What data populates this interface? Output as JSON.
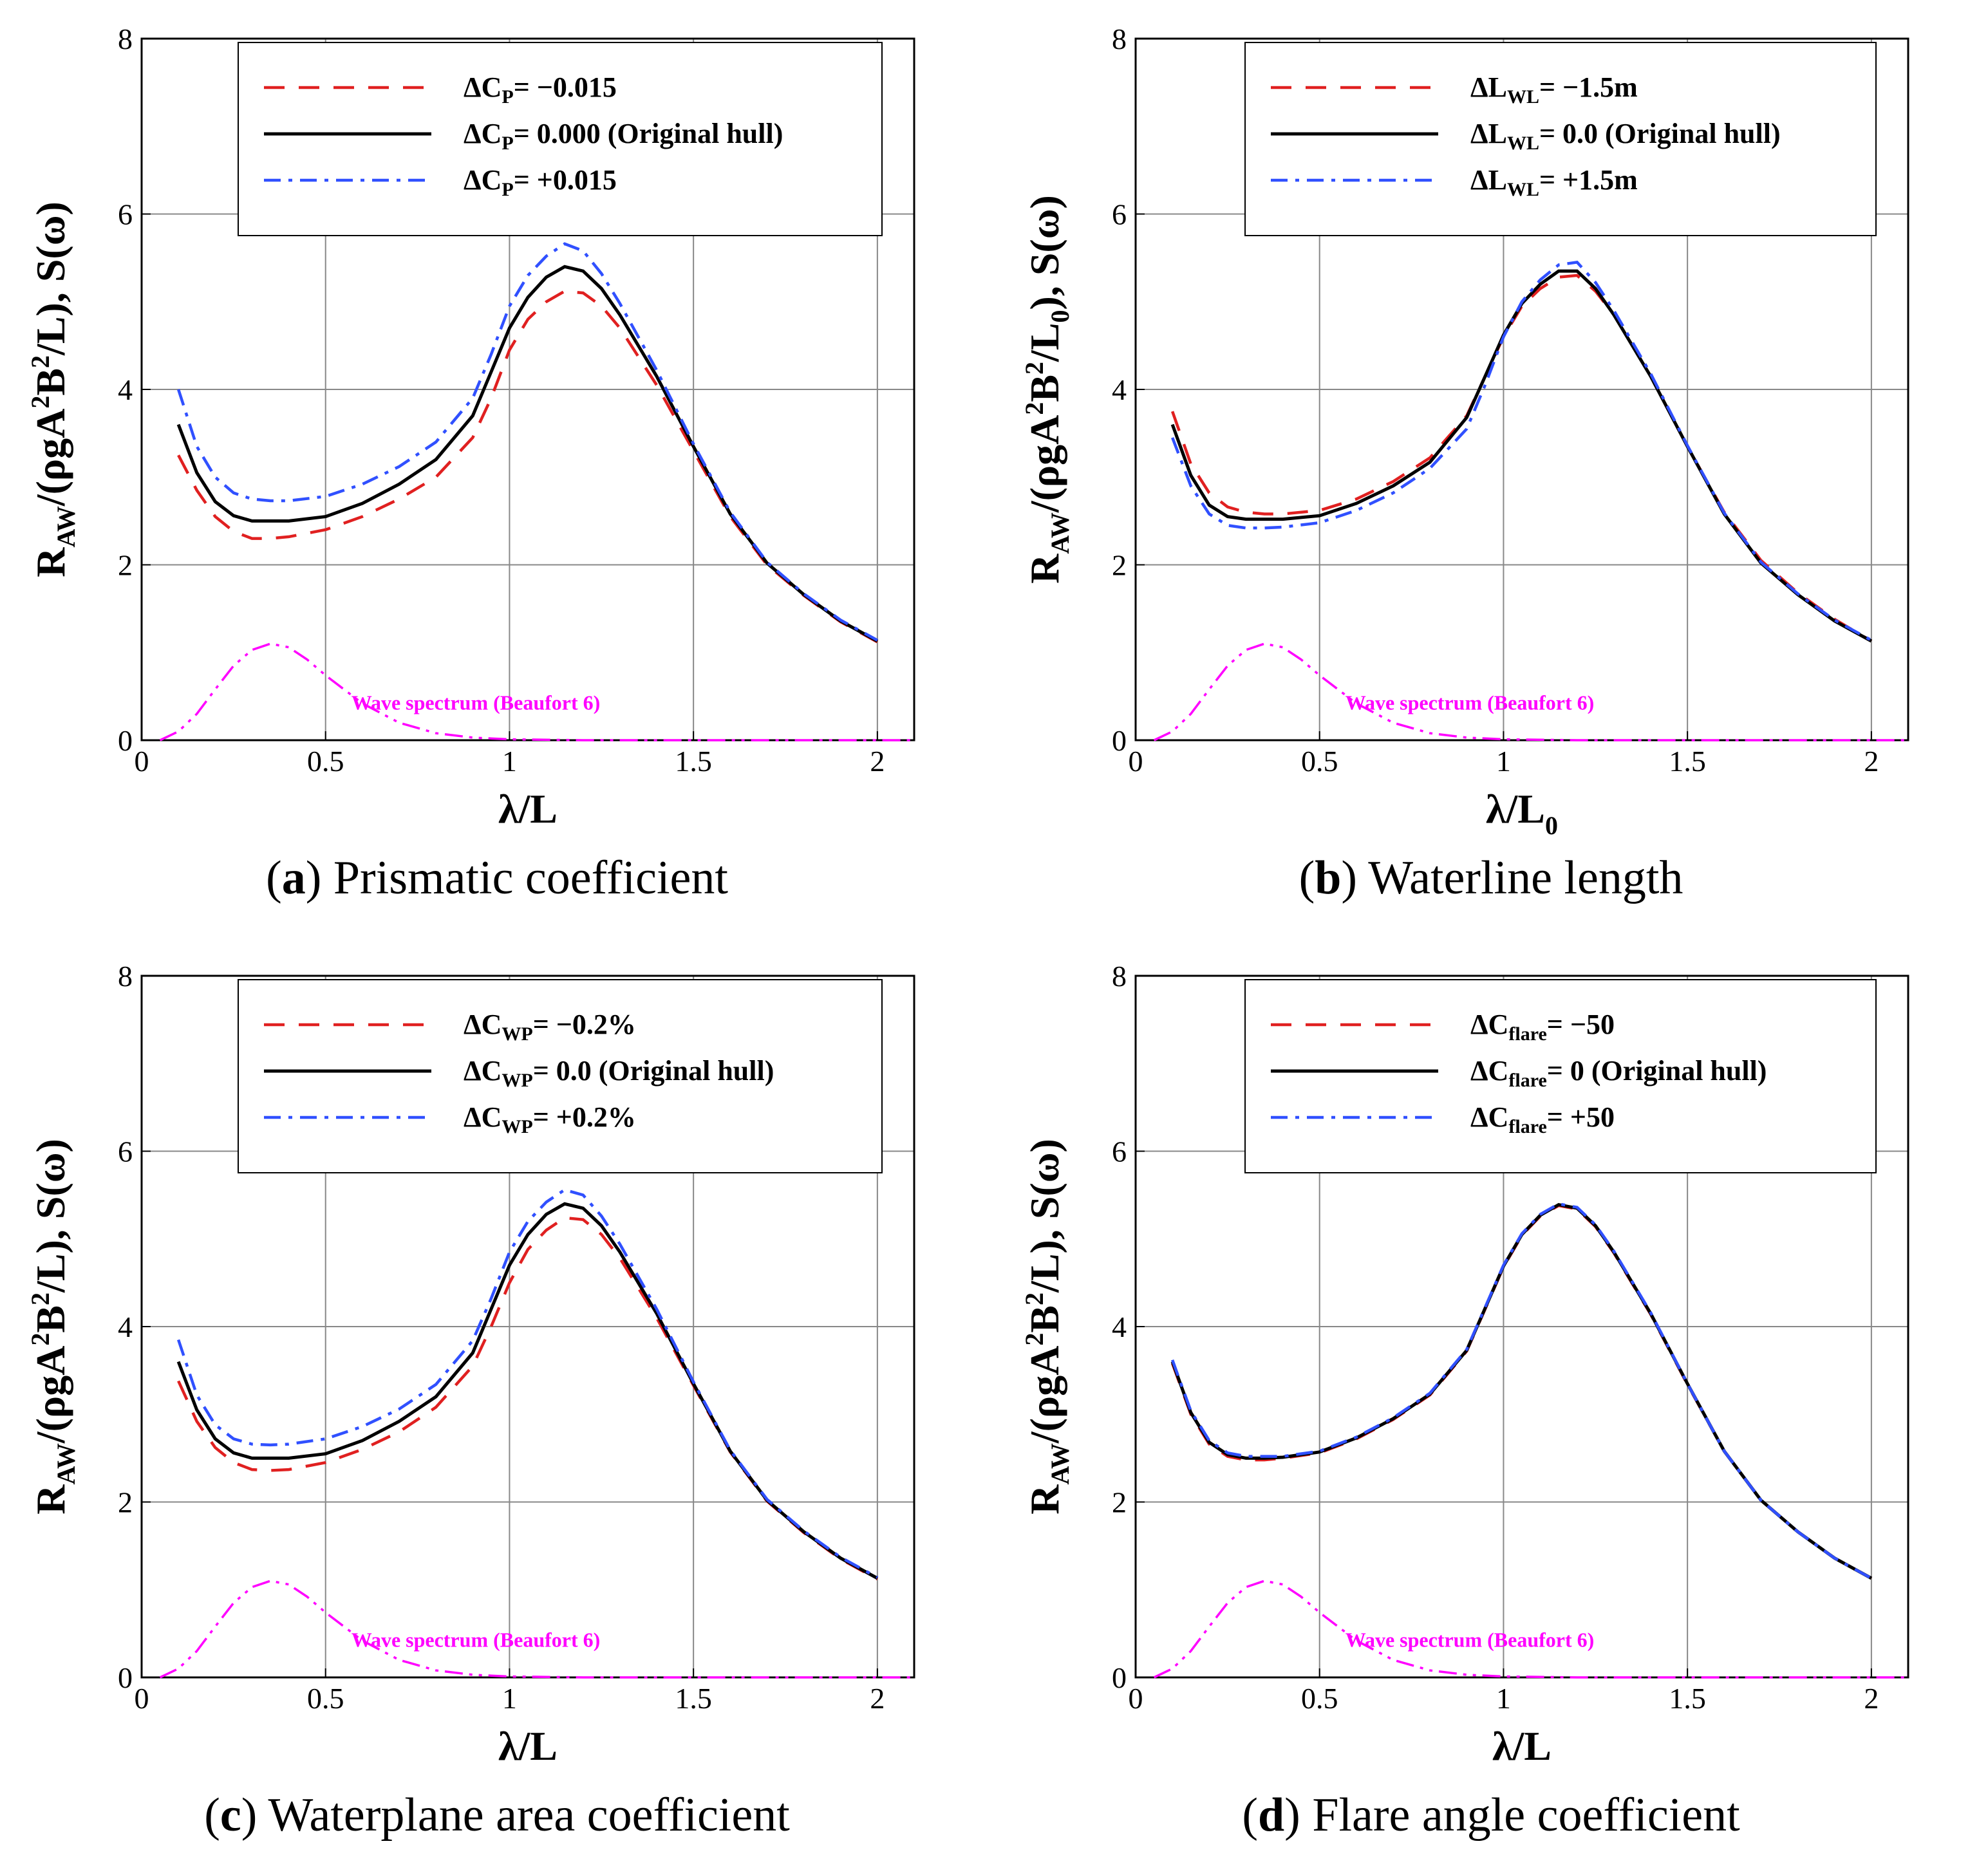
{
  "chart_data": [
    {
      "panel": "a",
      "type": "line",
      "caption_letter": "a",
      "caption_text": "Prismatic coefficient",
      "ylabel": {
        "base": "R",
        "sub1": "AW",
        "mid": "/(ρgA",
        "sup1": "2",
        "mid2": "B",
        "sup2": "2",
        "end": "/L), S(ω)"
      },
      "xlabel": {
        "base": "λ/L",
        "sub": ""
      },
      "xlim": [
        0,
        2.1
      ],
      "ylim": [
        0,
        8
      ],
      "xticks": [
        0,
        0.5,
        1,
        1.5,
        2
      ],
      "xtick_labels": [
        "0",
        "0.5",
        "1",
        "1.5",
        "2"
      ],
      "yticks": [
        0,
        2,
        4,
        6,
        8
      ],
      "ytick_labels": [
        "0",
        "2",
        "4",
        "6",
        "8"
      ],
      "grid": true,
      "legend_position": "top-right",
      "legend": [
        {
          "prefix": "ΔC",
          "sub": "P",
          "suffix": "= −0.015"
        },
        {
          "prefix": "ΔC",
          "sub": "P",
          "suffix": "= 0.000 (Original hull)"
        },
        {
          "prefix": "ΔC",
          "sub": "P",
          "suffix": "= +0.015"
        }
      ],
      "spectrum_label": "Wave spectrum (Beaufort 6)",
      "x": [
        0.1,
        0.15,
        0.2,
        0.25,
        0.3,
        0.35,
        0.4,
        0.5,
        0.6,
        0.7,
        0.8,
        0.9,
        0.95,
        1.0,
        1.05,
        1.1,
        1.15,
        1.2,
        1.25,
        1.3,
        1.4,
        1.5,
        1.6,
        1.7,
        1.8,
        1.9,
        2.0
      ],
      "series": [
        {
          "color": "#e02020",
          "dash": "red",
          "values": [
            3.25,
            2.85,
            2.55,
            2.38,
            2.3,
            2.3,
            2.32,
            2.4,
            2.55,
            2.75,
            3.0,
            3.45,
            3.9,
            4.45,
            4.8,
            5.0,
            5.12,
            5.1,
            4.95,
            4.7,
            4.05,
            3.3,
            2.55,
            2.0,
            1.65,
            1.35,
            1.12
          ]
        },
        {
          "color": "#000000",
          "dash": "solid",
          "values": [
            3.6,
            3.05,
            2.72,
            2.56,
            2.5,
            2.5,
            2.5,
            2.55,
            2.7,
            2.92,
            3.2,
            3.7,
            4.2,
            4.7,
            5.05,
            5.28,
            5.4,
            5.35,
            5.15,
            4.85,
            4.15,
            3.35,
            2.58,
            2.02,
            1.66,
            1.36,
            1.13
          ]
        },
        {
          "color": "#3050ff",
          "dash": "dashdot",
          "values": [
            4.0,
            3.35,
            3.0,
            2.82,
            2.75,
            2.73,
            2.73,
            2.78,
            2.92,
            3.12,
            3.4,
            3.9,
            4.4,
            4.95,
            5.3,
            5.52,
            5.66,
            5.58,
            5.32,
            4.98,
            4.22,
            3.38,
            2.6,
            2.03,
            1.67,
            1.37,
            1.14
          ]
        }
      ],
      "spectrum": {
        "color": "#ff00ff",
        "x": [
          0.05,
          0.1,
          0.15,
          0.2,
          0.25,
          0.3,
          0.35,
          0.4,
          0.45,
          0.5,
          0.6,
          0.7,
          0.8,
          0.9,
          1.0,
          1.2,
          1.5,
          2.0,
          2.1
        ],
        "values": [
          0.0,
          0.1,
          0.3,
          0.58,
          0.85,
          1.03,
          1.1,
          1.06,
          0.92,
          0.74,
          0.42,
          0.2,
          0.08,
          0.03,
          0.01,
          0.0,
          0.0,
          0.0,
          0.0
        ]
      }
    },
    {
      "panel": "b",
      "type": "line",
      "caption_letter": "b",
      "caption_text": "Waterline length",
      "ylabel": {
        "base": "R",
        "sub1": "AW",
        "mid": "/(ρgA",
        "sup1": "2",
        "mid2": "B",
        "sup2": "2",
        "end": "/L",
        "sub_end": "0",
        "end2": "), S(ω)"
      },
      "xlabel": {
        "base": "λ/L",
        "sub": "0"
      },
      "xlim": [
        0,
        2.1
      ],
      "ylim": [
        0,
        8
      ],
      "xticks": [
        0,
        0.5,
        1,
        1.5,
        2
      ],
      "xtick_labels": [
        "0",
        "0.5",
        "1",
        "1.5",
        "2"
      ],
      "yticks": [
        0,
        2,
        4,
        6,
        8
      ],
      "ytick_labels": [
        "0",
        "2",
        "4",
        "6",
        "8"
      ],
      "grid": true,
      "legend_position": "top-right",
      "legend": [
        {
          "prefix": "ΔL",
          "sub": "WL",
          "suffix": "= −1.5m"
        },
        {
          "prefix": "ΔL",
          "sub": "WL",
          "suffix": "= 0.0 (Original hull)"
        },
        {
          "prefix": "ΔL",
          "sub": "WL",
          "suffix": "= +1.5m"
        }
      ],
      "spectrum_label": "Wave spectrum (Beaufort 6)",
      "x": [
        0.1,
        0.15,
        0.2,
        0.25,
        0.3,
        0.35,
        0.4,
        0.5,
        0.6,
        0.7,
        0.8,
        0.9,
        0.95,
        1.0,
        1.05,
        1.1,
        1.15,
        1.2,
        1.25,
        1.3,
        1.4,
        1.5,
        1.6,
        1.7,
        1.8,
        1.9,
        2.0
      ],
      "series": [
        {
          "color": "#e02020",
          "dash": "red",
          "values": [
            3.75,
            3.15,
            2.82,
            2.66,
            2.6,
            2.58,
            2.58,
            2.62,
            2.75,
            2.95,
            3.22,
            3.7,
            4.15,
            4.6,
            4.95,
            5.15,
            5.28,
            5.3,
            5.12,
            4.85,
            4.15,
            3.35,
            2.6,
            2.05,
            1.68,
            1.38,
            1.13
          ]
        },
        {
          "color": "#000000",
          "dash": "solid",
          "values": [
            3.6,
            3.02,
            2.68,
            2.55,
            2.52,
            2.52,
            2.52,
            2.56,
            2.7,
            2.9,
            3.17,
            3.68,
            4.15,
            4.62,
            4.98,
            5.2,
            5.35,
            5.35,
            5.15,
            4.85,
            4.15,
            3.35,
            2.58,
            2.02,
            1.66,
            1.36,
            1.13
          ]
        },
        {
          "color": "#3050ff",
          "dash": "dashdot",
          "values": [
            3.45,
            2.9,
            2.58,
            2.45,
            2.42,
            2.42,
            2.43,
            2.48,
            2.62,
            2.82,
            3.1,
            3.55,
            4.05,
            4.6,
            5.0,
            5.25,
            5.42,
            5.45,
            5.22,
            4.9,
            4.18,
            3.36,
            2.59,
            2.03,
            1.67,
            1.37,
            1.14
          ]
        }
      ],
      "spectrum": {
        "color": "#ff00ff",
        "x": [
          0.05,
          0.1,
          0.15,
          0.2,
          0.25,
          0.3,
          0.35,
          0.4,
          0.45,
          0.5,
          0.6,
          0.7,
          0.8,
          0.9,
          1.0,
          1.2,
          1.5,
          2.0,
          2.1
        ],
        "values": [
          0.0,
          0.1,
          0.3,
          0.58,
          0.85,
          1.03,
          1.1,
          1.06,
          0.92,
          0.74,
          0.42,
          0.2,
          0.08,
          0.03,
          0.01,
          0.0,
          0.0,
          0.0,
          0.0
        ]
      }
    },
    {
      "panel": "c",
      "type": "line",
      "caption_letter": "c",
      "caption_text": "Waterplane area coefficient",
      "ylabel": {
        "base": "R",
        "sub1": "AW",
        "mid": "/(ρgA",
        "sup1": "2",
        "mid2": "B",
        "sup2": "2",
        "end": "/L), S(ω)"
      },
      "xlabel": {
        "base": "λ/L",
        "sub": ""
      },
      "xlim": [
        0,
        2.1
      ],
      "ylim": [
        0,
        8
      ],
      "xticks": [
        0,
        0.5,
        1,
        1.5,
        2
      ],
      "xtick_labels": [
        "0",
        "0.5",
        "1",
        "1.5",
        "2"
      ],
      "yticks": [
        0,
        2,
        4,
        6,
        8
      ],
      "ytick_labels": [
        "0",
        "2",
        "4",
        "6",
        "8"
      ],
      "grid": true,
      "legend_position": "top-right",
      "legend": [
        {
          "prefix": "ΔC",
          "sub": "WP",
          "suffix": "= −0.2%"
        },
        {
          "prefix": "ΔC",
          "sub": "WP",
          "suffix": "= 0.0 (Original hull)"
        },
        {
          "prefix": "ΔC",
          "sub": "WP",
          "suffix": "= +0.2%"
        }
      ],
      "spectrum_label": "Wave spectrum (Beaufort 6)",
      "x": [
        0.1,
        0.15,
        0.2,
        0.25,
        0.3,
        0.35,
        0.4,
        0.5,
        0.6,
        0.7,
        0.8,
        0.9,
        0.95,
        1.0,
        1.05,
        1.1,
        1.15,
        1.2,
        1.25,
        1.3,
        1.4,
        1.5,
        1.6,
        1.7,
        1.8,
        1.9,
        2.0
      ],
      "series": [
        {
          "color": "#e02020",
          "dash": "red",
          "values": [
            3.38,
            2.92,
            2.62,
            2.45,
            2.37,
            2.36,
            2.37,
            2.45,
            2.6,
            2.8,
            3.08,
            3.55,
            4.0,
            4.5,
            4.88,
            5.1,
            5.24,
            5.22,
            5.05,
            4.78,
            4.1,
            3.33,
            2.57,
            2.01,
            1.65,
            1.35,
            1.12
          ]
        },
        {
          "color": "#000000",
          "dash": "solid",
          "values": [
            3.6,
            3.05,
            2.72,
            2.56,
            2.5,
            2.5,
            2.5,
            2.55,
            2.7,
            2.92,
            3.2,
            3.7,
            4.2,
            4.7,
            5.05,
            5.28,
            5.4,
            5.35,
            5.15,
            4.85,
            4.15,
            3.35,
            2.58,
            2.02,
            1.66,
            1.36,
            1.13
          ]
        },
        {
          "color": "#3050ff",
          "dash": "dashdot",
          "values": [
            3.85,
            3.22,
            2.88,
            2.72,
            2.66,
            2.65,
            2.66,
            2.72,
            2.86,
            3.06,
            3.34,
            3.84,
            4.32,
            4.85,
            5.2,
            5.42,
            5.56,
            5.5,
            5.26,
            4.94,
            4.2,
            3.37,
            2.59,
            2.03,
            1.67,
            1.37,
            1.14
          ]
        }
      ],
      "spectrum": {
        "color": "#ff00ff",
        "x": [
          0.05,
          0.1,
          0.15,
          0.2,
          0.25,
          0.3,
          0.35,
          0.4,
          0.45,
          0.5,
          0.6,
          0.7,
          0.8,
          0.9,
          1.0,
          1.2,
          1.5,
          2.0,
          2.1
        ],
        "values": [
          0.0,
          0.1,
          0.3,
          0.58,
          0.85,
          1.03,
          1.1,
          1.06,
          0.92,
          0.74,
          0.42,
          0.2,
          0.08,
          0.03,
          0.01,
          0.0,
          0.0,
          0.0,
          0.0
        ]
      }
    },
    {
      "panel": "d",
      "type": "line",
      "caption_letter": "d",
      "caption_text": "Flare angle coefficient",
      "ylabel": {
        "base": "R",
        "sub1": "AW",
        "mid": "/(ρgA",
        "sup1": "2",
        "mid2": "B",
        "sup2": "2",
        "end": "/L), S(ω)"
      },
      "xlabel": {
        "base": "λ/L",
        "sub": ""
      },
      "xlim": [
        0,
        2.1
      ],
      "ylim": [
        0,
        8
      ],
      "xticks": [
        0,
        0.5,
        1,
        1.5,
        2
      ],
      "xtick_labels": [
        "0",
        "0.5",
        "1",
        "1.5",
        "2"
      ],
      "yticks": [
        0,
        2,
        4,
        6,
        8
      ],
      "ytick_labels": [
        "0",
        "2",
        "4",
        "6",
        "8"
      ],
      "grid": true,
      "legend_position": "top-right",
      "legend": [
        {
          "prefix": "ΔC",
          "sub": "flare",
          "suffix": "= −50"
        },
        {
          "prefix": "ΔC",
          "sub": "flare",
          "suffix": "= 0 (Original hull)"
        },
        {
          "prefix": "ΔC",
          "sub": "flare",
          "suffix": "= +50"
        }
      ],
      "spectrum_label": "Wave spectrum (Beaufort 6)",
      "x": [
        0.1,
        0.15,
        0.2,
        0.25,
        0.3,
        0.35,
        0.4,
        0.5,
        0.6,
        0.7,
        0.8,
        0.9,
        0.95,
        1.0,
        1.05,
        1.1,
        1.15,
        1.2,
        1.25,
        1.3,
        1.4,
        1.5,
        1.6,
        1.7,
        1.8,
        1.9,
        2.0
      ],
      "series": [
        {
          "color": "#e02020",
          "dash": "red",
          "values": [
            3.58,
            3.0,
            2.66,
            2.52,
            2.48,
            2.48,
            2.5,
            2.56,
            2.72,
            2.94,
            3.22,
            3.72,
            4.2,
            4.68,
            5.04,
            5.26,
            5.38,
            5.34,
            5.14,
            4.84,
            4.14,
            3.34,
            2.58,
            2.02,
            1.66,
            1.36,
            1.13
          ]
        },
        {
          "color": "#000000",
          "dash": "solid",
          "values": [
            3.6,
            3.02,
            2.68,
            2.54,
            2.5,
            2.5,
            2.51,
            2.57,
            2.73,
            2.95,
            3.23,
            3.73,
            4.21,
            4.69,
            5.05,
            5.27,
            5.39,
            5.35,
            5.15,
            4.85,
            4.15,
            3.35,
            2.58,
            2.02,
            1.66,
            1.36,
            1.13
          ]
        },
        {
          "color": "#3050ff",
          "dash": "dashdot",
          "values": [
            3.62,
            3.04,
            2.7,
            2.56,
            2.52,
            2.52,
            2.52,
            2.58,
            2.74,
            2.96,
            3.24,
            3.74,
            4.22,
            4.7,
            5.06,
            5.28,
            5.4,
            5.36,
            5.16,
            4.86,
            4.16,
            3.35,
            2.58,
            2.02,
            1.66,
            1.36,
            1.13
          ]
        }
      ],
      "spectrum": {
        "color": "#ff00ff",
        "x": [
          0.05,
          0.1,
          0.15,
          0.2,
          0.25,
          0.3,
          0.35,
          0.4,
          0.45,
          0.5,
          0.6,
          0.7,
          0.8,
          0.9,
          1.0,
          1.2,
          1.5,
          2.0,
          2.1
        ],
        "values": [
          0.0,
          0.1,
          0.3,
          0.58,
          0.85,
          1.03,
          1.1,
          1.06,
          0.92,
          0.74,
          0.42,
          0.2,
          0.08,
          0.03,
          0.01,
          0.0,
          0.0,
          0.0,
          0.0
        ]
      }
    }
  ]
}
